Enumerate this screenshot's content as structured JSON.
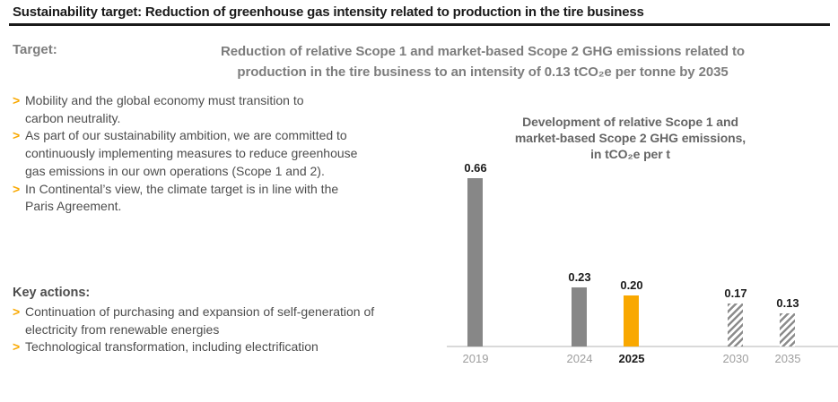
{
  "page": {
    "title": "Sustainability target: Reduction of greenhouse gas intensity related to production in the tire business"
  },
  "target": {
    "label": "Target:",
    "text": "Reduction of relative Scope 1 and market-based Scope 2 GHG emissions related to\nproduction in the tire business to an intensity of 0.13 tCO₂e per tonne by 2035"
  },
  "bullets": [
    "Mobility and the global economy must transition to\ncarbon neutrality.",
    "As part of our sustainability ambition, we are committed to\ncontinuously implementing measures to reduce greenhouse\ngas emissions in our own operations (Scope 1 and 2).",
    "In Continental’s view, the climate target is in line with the\nParis Agreement."
  ],
  "key_actions": {
    "label": "Key actions:",
    "items": [
      "Continuation of purchasing and expansion of self-generation of\nelectricity from renewable energies",
      "Technological transformation, including electrification"
    ]
  },
  "icons": {
    "bullet_chevron": ">"
  },
  "chart_data": {
    "type": "bar",
    "title": "Development of relative Scope 1 and\nmarket-based Scope 2 GHG emissions,\nin tCO₂e per t",
    "xlabel": "",
    "ylabel": "tCO₂e per t",
    "categories": [
      "2019",
      "2024",
      "2025",
      "2030",
      "2035"
    ],
    "values": [
      0.66,
      0.23,
      0.2,
      0.17,
      0.13
    ],
    "ylim": [
      0,
      0.7
    ],
    "grid": false,
    "legend": false,
    "bars": [
      {
        "year": "2019",
        "value": 0.66,
        "label": "0.66",
        "style": "solid-gray",
        "slot": 0,
        "axis_label_emphasis": false
      },
      {
        "year": "2024",
        "value": 0.23,
        "label": "0.23",
        "style": "solid-gray",
        "slot": 2,
        "axis_label_emphasis": false
      },
      {
        "year": "2025",
        "value": 0.2,
        "label": "0.20",
        "style": "solid-orange",
        "slot": 3,
        "axis_label_emphasis": true
      },
      {
        "year": "2030",
        "value": 0.17,
        "label": "0.17",
        "style": "hatched",
        "slot": 5,
        "axis_label_emphasis": false
      },
      {
        "year": "2035",
        "value": 0.13,
        "label": "0.13",
        "style": "hatched",
        "slot": 6,
        "axis_label_emphasis": false
      }
    ]
  },
  "colors": {
    "accent_orange": "#F9A800",
    "bar_gray": "#878787",
    "hatch_gray": "#8C8C8C",
    "axis_gray": "#D9D9D9",
    "title_black": "#1A1A1A",
    "body_gray": "#4D4D4D",
    "muted_gray": "#7D7D7D",
    "chart_title_gray": "#666666",
    "year_label_gray": "#9E9E9E"
  }
}
